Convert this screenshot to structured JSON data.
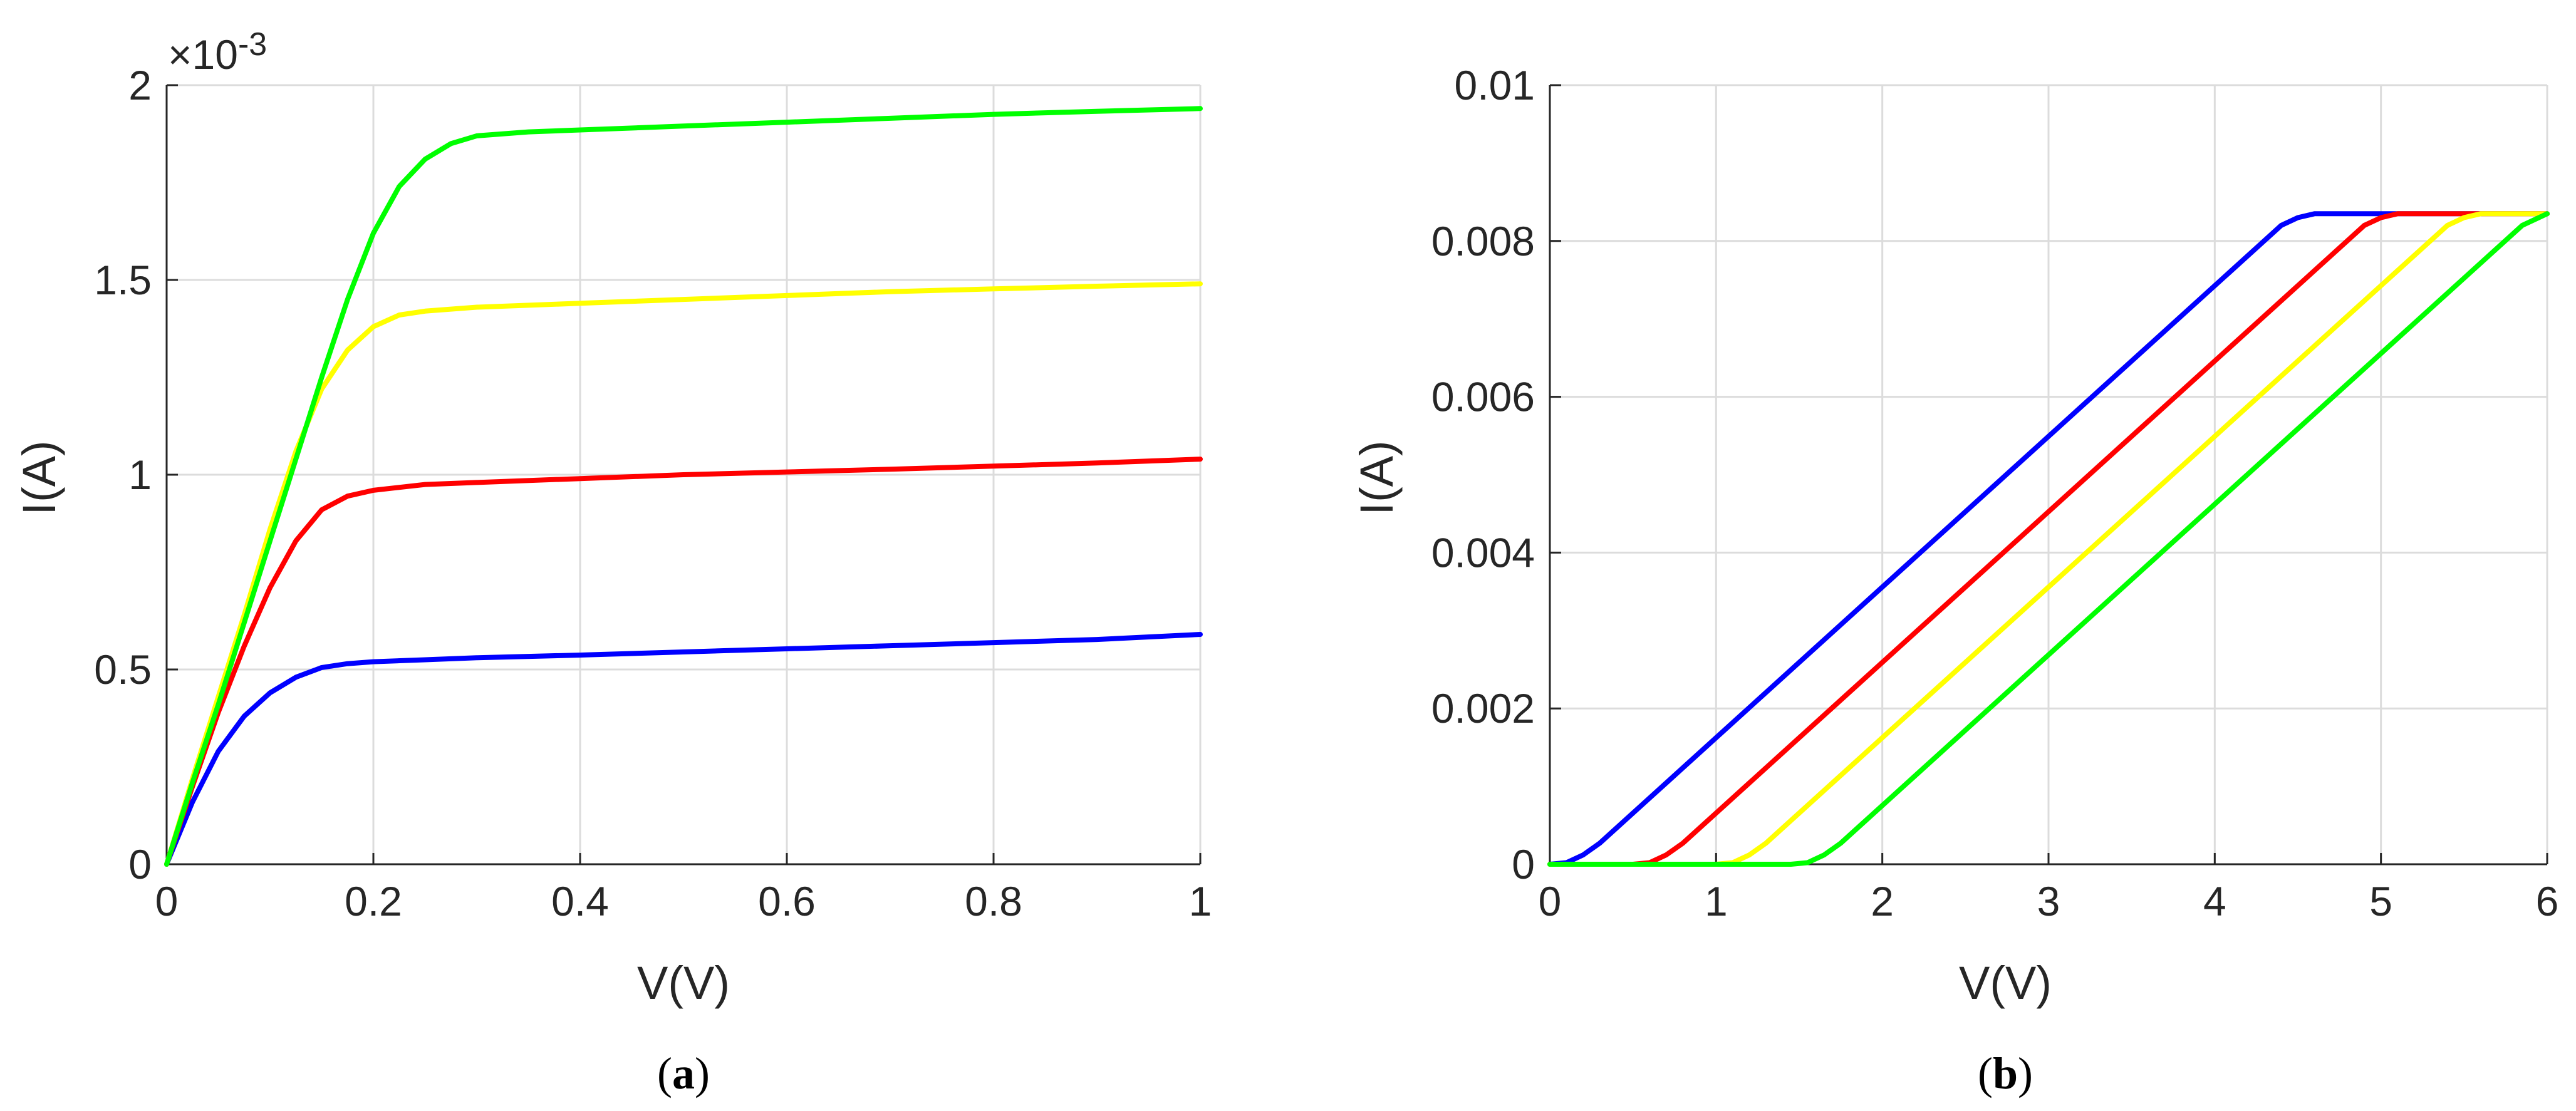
{
  "chart_data": [
    {
      "type": "line",
      "caption": "a",
      "xlabel": "V(V)",
      "ylabel": "I(A)",
      "exponent_label": "×10",
      "exponent_power": "-3",
      "xlim": [
        0,
        1
      ],
      "ylim": [
        0,
        2
      ],
      "xticks": [
        "0",
        "0.2",
        "0.4",
        "0.6",
        "0.8",
        "1"
      ],
      "xtick_values": [
        0,
        0.2,
        0.4,
        0.6,
        0.8,
        1
      ],
      "yticks": [
        "0",
        "0.5",
        "1",
        "1.5",
        "2"
      ],
      "ytick_values": [
        0,
        0.5,
        1,
        1.5,
        2
      ],
      "grid": true,
      "series": [
        {
          "color": "#0000ff",
          "x": [
            0,
            0.025,
            0.05,
            0.075,
            0.1,
            0.125,
            0.15,
            0.175,
            0.2,
            0.25,
            0.3,
            0.4,
            0.5,
            0.6,
            0.7,
            0.8,
            0.9,
            1.0
          ],
          "y": [
            0,
            0.16,
            0.29,
            0.38,
            0.44,
            0.48,
            0.505,
            0.515,
            0.52,
            0.525,
            0.53,
            0.537,
            0.545,
            0.553,
            0.561,
            0.569,
            0.577,
            0.59
          ]
        },
        {
          "color": "#ff0000",
          "x": [
            0,
            0.025,
            0.05,
            0.075,
            0.1,
            0.125,
            0.15,
            0.175,
            0.2,
            0.25,
            0.3,
            0.4,
            0.5,
            0.6,
            0.7,
            0.8,
            0.9,
            1.0
          ],
          "y": [
            0,
            0.2,
            0.39,
            0.56,
            0.71,
            0.83,
            0.91,
            0.945,
            0.96,
            0.975,
            0.98,
            0.99,
            1.0,
            1.007,
            1.014,
            1.022,
            1.03,
            1.04
          ]
        },
        {
          "color": "#ffff00",
          "x": [
            0,
            0.025,
            0.05,
            0.075,
            0.1,
            0.125,
            0.15,
            0.175,
            0.2,
            0.225,
            0.25,
            0.3,
            0.4,
            0.5,
            0.6,
            0.7,
            0.8,
            0.9,
            1.0
          ],
          "y": [
            0,
            0.22,
            0.43,
            0.64,
            0.86,
            1.06,
            1.22,
            1.32,
            1.38,
            1.41,
            1.42,
            1.43,
            1.44,
            1.45,
            1.46,
            1.47,
            1.477,
            1.484,
            1.49
          ]
        },
        {
          "color": "#00ff00",
          "x": [
            0,
            0.025,
            0.05,
            0.075,
            0.1,
            0.125,
            0.15,
            0.175,
            0.2,
            0.225,
            0.25,
            0.275,
            0.3,
            0.35,
            0.4,
            0.5,
            0.6,
            0.7,
            0.8,
            0.9,
            1.0
          ],
          "y": [
            0,
            0.21,
            0.41,
            0.62,
            0.83,
            1.04,
            1.25,
            1.45,
            1.62,
            1.74,
            1.81,
            1.85,
            1.87,
            1.88,
            1.885,
            1.895,
            1.905,
            1.915,
            1.925,
            1.933,
            1.94
          ]
        }
      ]
    },
    {
      "type": "line",
      "caption": "b",
      "xlabel": "V(V)",
      "ylabel": "I(A)",
      "xlim": [
        0,
        6
      ],
      "ylim": [
        0,
        0.01
      ],
      "xticks": [
        "0",
        "1",
        "2",
        "3",
        "4",
        "5",
        "6"
      ],
      "xtick_values": [
        0,
        1,
        2,
        3,
        4,
        5,
        6
      ],
      "yticks": [
        "0",
        "0.002",
        "0.004",
        "0.006",
        "0.008",
        "0.01"
      ],
      "ytick_values": [
        0,
        0.002,
        0.004,
        0.006,
        0.008,
        0.01
      ],
      "grid": true,
      "series": [
        {
          "color": "#0000ff",
          "x": [
            0,
            0.1,
            0.2,
            0.3,
            4.4,
            4.5,
            4.6,
            6.0
          ],
          "y": [
            0,
            2e-05,
            0.00012,
            0.00027,
            0.0082,
            0.0083,
            0.00835,
            0.00835
          ]
        },
        {
          "color": "#ff0000",
          "x": [
            0,
            0.5,
            0.6,
            0.7,
            0.8,
            4.9,
            5.0,
            5.1,
            6.0
          ],
          "y": [
            0,
            0,
            2e-05,
            0.00012,
            0.00027,
            0.0082,
            0.0083,
            0.00835,
            0.00835
          ]
        },
        {
          "color": "#ffff00",
          "x": [
            0,
            1.0,
            1.1,
            1.2,
            1.3,
            5.4,
            5.5,
            5.6,
            6.0
          ],
          "y": [
            0,
            0,
            2e-05,
            0.00012,
            0.00027,
            0.0082,
            0.0083,
            0.00835,
            0.00835
          ]
        },
        {
          "color": "#00ff00",
          "x": [
            0,
            1.45,
            1.55,
            1.65,
            1.75,
            5.85,
            5.95,
            6.0
          ],
          "y": [
            0,
            0,
            2e-05,
            0.00012,
            0.00027,
            0.0082,
            0.0083,
            0.00835
          ]
        }
      ]
    }
  ]
}
